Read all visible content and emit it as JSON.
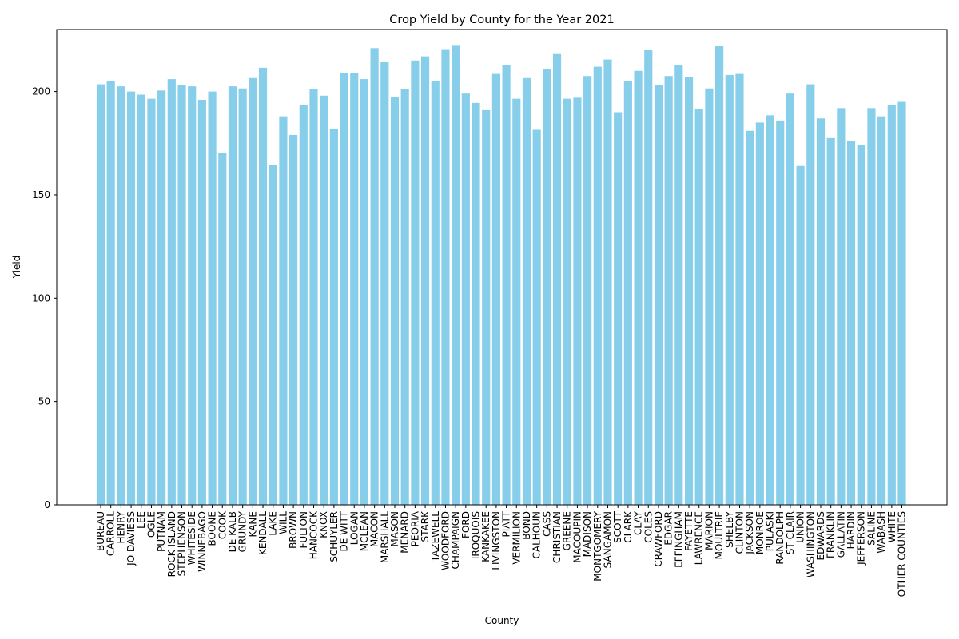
{
  "chart_data": {
    "type": "bar",
    "title": "Crop Yield by County for the Year 2021",
    "xlabel": "County",
    "ylabel": "Yield",
    "ylim": [
      0,
      230
    ],
    "yticks": [
      0,
      50,
      100,
      150,
      200
    ],
    "grid": false,
    "bar_color": "#87ceeb",
    "categories": [
      "BUREAU",
      "CARROLL",
      "HENRY",
      "JO DAVIESS",
      "LEE",
      "OGLE",
      "PUTNAM",
      "ROCK ISLAND",
      "STEPHENSON",
      "WHITESIDE",
      "WINNEBAGO",
      "BOONE",
      "COOK",
      "DE KALB",
      "GRUNDY",
      "KANE",
      "KENDALL",
      "LAKE",
      "WILL",
      "BROWN",
      "FULTON",
      "HANCOCK",
      "KNOX",
      "SCHUYLER",
      "DE WITT",
      "LOGAN",
      "MCLEAN",
      "MACON",
      "MARSHALL",
      "MASON",
      "MENARD",
      "PEORIA",
      "STARK",
      "TAZEWELL",
      "WOODFORD",
      "CHAMPAIGN",
      "FORD",
      "IROQUOIS",
      "KANKAKEE",
      "LIVINGSTON",
      "PIATT",
      "VERMILION",
      "BOND",
      "CALHOUN",
      "CASS",
      "CHRISTIAN",
      "GREENE",
      "MACOUPIN",
      "MADISON",
      "MONTGOMERY",
      "SANGAMON",
      "SCOTT",
      "CLARK",
      "CLAY",
      "COLES",
      "CRAWFORD",
      "EDGAR",
      "EFFINGHAM",
      "FAYETTE",
      "LAWRENCE",
      "MARION",
      "MOULTRIE",
      "SHELBY",
      "CLINTON",
      "JACKSON",
      "MONROE",
      "PULASKI",
      "RANDOLPH",
      "ST CLAIR",
      "UNION",
      "WASHINGTON",
      "EDWARDS",
      "FRANKLIN",
      "GALLATIN",
      "HARDIN",
      "JEFFERSON",
      "SALINE",
      "WABASH",
      "WHITE",
      "OTHER COUNTIES"
    ],
    "values": [
      203.5,
      205.0,
      202.5,
      200.0,
      198.5,
      196.5,
      200.5,
      206.0,
      203.0,
      202.5,
      196.0,
      200.0,
      170.5,
      202.5,
      201.5,
      206.5,
      211.5,
      164.5,
      188.0,
      179.0,
      193.5,
      201.0,
      198.0,
      182.0,
      209.0,
      209.0,
      206.0,
      221.0,
      214.5,
      197.5,
      201.0,
      215.0,
      217.0,
      205.0,
      220.5,
      222.5,
      199.0,
      194.5,
      191.0,
      208.5,
      213.0,
      196.5,
      206.5,
      181.5,
      211.0,
      218.5,
      196.5,
      197.0,
      207.5,
      212.0,
      215.5,
      190.0,
      205.0,
      210.0,
      220.0,
      203.0,
      207.5,
      213.0,
      207.0,
      191.5,
      201.5,
      222.0,
      208.0,
      208.5,
      181.0,
      185.0,
      188.5,
      186.0,
      199.0,
      164.0,
      203.5,
      187.0,
      177.5,
      192.0,
      176.0,
      174.0,
      192.0,
      188.0,
      193.5,
      195.0
    ]
  }
}
